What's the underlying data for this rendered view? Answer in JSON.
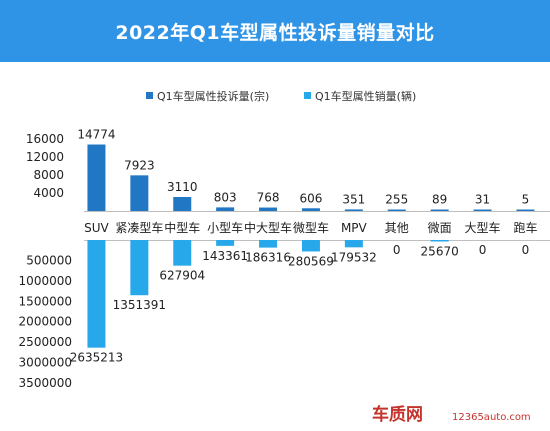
{
  "title": "2022年Q1车型属性投诉量销量对比",
  "colors": {
    "title_bg": "#2f93e6",
    "complaints": "#2277c4",
    "sales": "#27a8ea",
    "watermark": "#c4342d"
  },
  "watermark": {
    "brand": "车质网",
    "site": "12365auto.com"
  },
  "chart_data": {
    "type": "bar",
    "legend_position": "top",
    "grid": false,
    "categories": [
      "SUV",
      "紧凑型车",
      "中型车",
      "小型车",
      "中大型车",
      "微型车",
      "MPV",
      "其他",
      "微面",
      "大型车",
      "跑车"
    ],
    "series": [
      {
        "name": "Q1车型属性投诉量(宗)",
        "values": [
          14774,
          7923,
          3110,
          803,
          768,
          606,
          351,
          255,
          89,
          31,
          5
        ],
        "labels": [
          "14774",
          "7923",
          "3110",
          "803",
          "768",
          "606",
          "351",
          "255",
          "89",
          "31",
          "5"
        ]
      },
      {
        "name": "Q1车型属性销量(辆)",
        "values": [
          2635213,
          1351391,
          627904,
          143361,
          186316,
          280569,
          179532,
          0,
          25670,
          0,
          0
        ],
        "labels": [
          "2635213",
          "1351391",
          "627904",
          "143361",
          "186316",
          "280569",
          "179532",
          "0",
          "25670",
          "0",
          "0"
        ]
      }
    ],
    "upper_axis": {
      "ylim": [
        0,
        16000
      ],
      "ticks": [
        4000,
        8000,
        12000,
        16000
      ],
      "tick_labels": [
        "4000",
        "8000",
        "12000",
        "16000"
      ]
    },
    "lower_axis": {
      "ylim": [
        0,
        3500000
      ],
      "ticks": [
        500000,
        1000000,
        1500000,
        2000000,
        2500000,
        3000000,
        3500000
      ],
      "tick_labels": [
        "500000",
        "1000000",
        "1500000",
        "2000000",
        "2500000",
        "3000000",
        "3500000"
      ]
    }
  }
}
